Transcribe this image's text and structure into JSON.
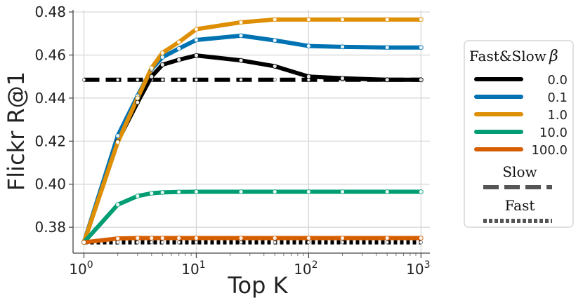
{
  "chart_data": {
    "type": "line",
    "xlabel": "Top K",
    "ylabel": "Flickr R@1",
    "xscale": "log",
    "xlim": [
      0.8,
      1200
    ],
    "ylim": [
      0.368,
      0.481
    ],
    "xticks": [
      {
        "value": 1,
        "base": "10",
        "exp": "0"
      },
      {
        "value": 10,
        "base": "10",
        "exp": "1"
      },
      {
        "value": 100,
        "base": "10",
        "exp": "2"
      },
      {
        "value": 1000,
        "base": "10",
        "exp": "3"
      }
    ],
    "yticks": [
      {
        "value": 0.38,
        "label": "0.38"
      },
      {
        "value": 0.4,
        "label": "0.40"
      },
      {
        "value": 0.42,
        "label": "0.42"
      },
      {
        "value": 0.44,
        "label": "0.44"
      },
      {
        "value": 0.46,
        "label": "0.46"
      },
      {
        "value": 0.48,
        "label": "0.48"
      }
    ],
    "grid": true,
    "x": [
      1,
      2,
      3,
      4,
      5,
      7,
      10,
      25,
      50,
      100,
      200,
      500,
      1000
    ],
    "series": [
      {
        "name": "0.0",
        "color": "#000000",
        "values": [
          0.373,
          0.42,
          0.438,
          0.45,
          0.4555,
          0.4578,
          0.4598,
          0.4575,
          0.4548,
          0.45,
          0.4492,
          0.4485,
          0.4485
        ]
      },
      {
        "name": "0.1",
        "color": "#0173b2",
        "values": [
          0.373,
          0.4225,
          0.441,
          0.4535,
          0.459,
          0.463,
          0.467,
          0.469,
          0.4668,
          0.4642,
          0.4638,
          0.4635,
          0.4635
        ]
      },
      {
        "name": "1.0",
        "color": "#de8f05",
        "values": [
          0.373,
          0.4195,
          0.44,
          0.454,
          0.461,
          0.466,
          0.472,
          0.4752,
          0.4765,
          0.4765,
          0.4765,
          0.4765,
          0.4765
        ]
      },
      {
        "name": "10.0",
        "color": "#029e73",
        "values": [
          0.373,
          0.3905,
          0.3945,
          0.3958,
          0.3962,
          0.3964,
          0.3965,
          0.3965,
          0.3965,
          0.3965,
          0.3965,
          0.3965,
          0.3965
        ]
      },
      {
        "name": "100.0",
        "color": "#d55e00",
        "values": [
          0.373,
          0.3748,
          0.375,
          0.375,
          0.375,
          0.375,
          0.375,
          0.375,
          0.375,
          0.375,
          0.375,
          0.375,
          0.375
        ]
      }
    ],
    "reference_lines": [
      {
        "name": "Slow",
        "value": 0.4485,
        "style": "dashed",
        "color": "#000000"
      },
      {
        "name": "Fast",
        "value": 0.373,
        "style": "dotted",
        "color": "#000000"
      }
    ],
    "legend": {
      "placement": "right",
      "title": "Fast&Slow",
      "title_symbol": "β",
      "entries": [
        "0.0",
        "0.1",
        "1.0",
        "10.0",
        "100.0"
      ],
      "style_entries": [
        {
          "label": "Slow",
          "style": "dashed",
          "color": "#555555"
        },
        {
          "label": "Fast",
          "style": "dotted",
          "color": "#555555"
        }
      ]
    }
  }
}
